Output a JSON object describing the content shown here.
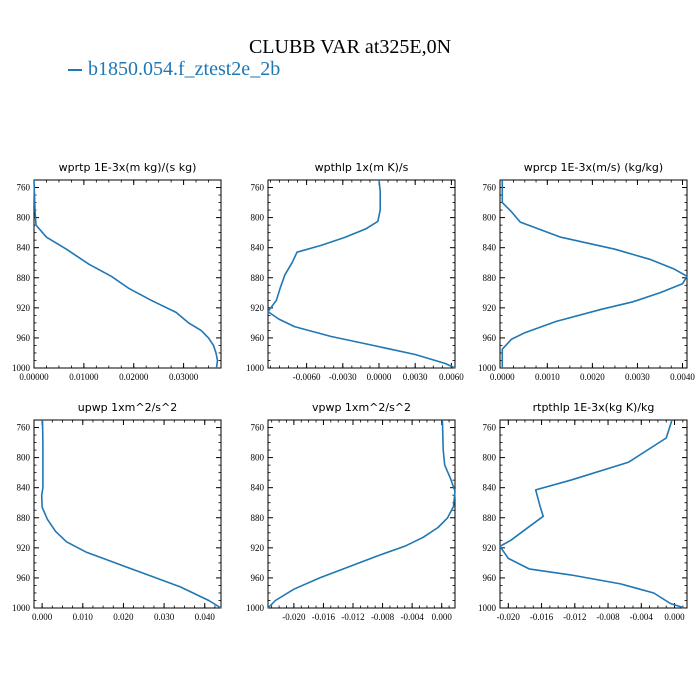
{
  "figure": {
    "title": "CLUBB VAR at325E,0N",
    "case": "b1850.054.f_ztest2e_2b",
    "line_color": "#1f77b4"
  },
  "chart_data": [
    {
      "type": "line",
      "title": "wprtp  1E-3x(m kg)/(s kg)",
      "xlim": [
        0,
        0.0375
      ],
      "ylim": [
        1000,
        750
      ],
      "xticks": [
        0,
        0.01,
        0.02,
        0.03
      ],
      "xtick_labels": [
        "0.00000",
        "0.01000",
        "0.02000",
        "0.03000"
      ],
      "yticks": [
        760,
        800,
        840,
        880,
        920,
        960,
        1000
      ],
      "series": [
        {
          "x": [
            0,
            0.0001,
            0.0002,
            0.0004,
            0.0025,
            0.0065,
            0.011,
            0.0155,
            0.019,
            0.0235,
            0.0285,
            0.031,
            0.0335,
            0.035,
            0.036,
            0.0365,
            0.0368,
            0.0366
          ],
          "y": [
            750,
            770,
            790,
            810,
            826,
            842,
            862,
            878,
            894,
            910,
            926,
            940,
            950,
            960,
            970,
            980,
            990,
            1000
          ]
        }
      ]
    },
    {
      "type": "line",
      "title": "wpthlp  1x(m K)/s",
      "xlim": [
        -0.0092,
        0.0063
      ],
      "ylim": [
        1000,
        750
      ],
      "xticks": [
        -0.006,
        -0.003,
        0,
        0.003,
        0.006
      ],
      "xtick_labels": [
        "-0.0060",
        "-0.0030",
        "0.0000",
        "0.0030",
        "0.0060"
      ],
      "yticks": [
        760,
        800,
        840,
        880,
        920,
        960,
        1000
      ],
      "series": [
        {
          "x": [
            0,
            0.0001,
            0.0001,
            -0.0001,
            -0.0011,
            -0.0028,
            -0.0048,
            -0.0068,
            -0.0072,
            -0.0078,
            -0.0082,
            -0.0085,
            -0.0092,
            -0.0083,
            -0.007,
            -0.004,
            -0.0005,
            0.003,
            0.0055,
            0.0063
          ],
          "y": [
            750,
            765,
            790,
            805,
            815,
            826,
            837,
            846,
            860,
            876,
            894,
            910,
            925,
            935,
            945,
            958,
            970,
            982,
            994,
            1000
          ]
        }
      ]
    },
    {
      "type": "line",
      "title": "wprcp  1E-3x(m/s) (kg/kg)",
      "xlim": [
        -5e-05,
        0.0041
      ],
      "ylim": [
        1000,
        750
      ],
      "xticks": [
        0,
        0.001,
        0.002,
        0.003,
        0.004
      ],
      "xtick_labels": [
        "0.0000",
        "0.0010",
        "0.0020",
        "0.0030",
        "0.0040"
      ],
      "yticks": [
        760,
        800,
        840,
        880,
        920,
        960,
        1000
      ],
      "series": [
        {
          "x": [
            0.0,
            0.0,
            0.0002,
            0.0004,
            0.0013,
            0.0025,
            0.0033,
            0.0038,
            0.0041,
            0.004,
            0.0035,
            0.0029,
            0.0022,
            0.0012,
            0.0005,
            0.0002,
            0.0,
            0.0
          ],
          "y": [
            750,
            780,
            792,
            806,
            826,
            842,
            856,
            868,
            878,
            888,
            900,
            912,
            922,
            938,
            953,
            962,
            975,
            1000
          ]
        }
      ]
    },
    {
      "type": "line",
      "title": "upwp  1xm^2/s^2",
      "xlim": [
        -0.002,
        0.044
      ],
      "ylim": [
        1000,
        750
      ],
      "xticks": [
        0,
        0.01,
        0.02,
        0.03,
        0.04
      ],
      "xtick_labels": [
        "0.000",
        "0.010",
        "0.020",
        "0.030",
        "0.040"
      ],
      "yticks": [
        760,
        800,
        840,
        880,
        920,
        960,
        1000
      ],
      "series": [
        {
          "x": [
            0.0001,
            0.0002,
            0.0002,
            0.0002,
            -0.0001,
            0.0,
            0.0013,
            0.0033,
            0.006,
            0.011,
            0.018,
            0.026,
            0.034,
            0.041,
            0.044
          ],
          "y": [
            750,
            780,
            820,
            840,
            850,
            866,
            882,
            898,
            912,
            926,
            940,
            956,
            972,
            990,
            1000
          ]
        }
      ]
    },
    {
      "type": "line",
      "title": "vpwp  1xm^2/s^2",
      "xlim": [
        -0.0235,
        0.0018
      ],
      "ylim": [
        1000,
        750
      ],
      "xticks": [
        -0.02,
        -0.016,
        -0.012,
        -0.008,
        -0.004,
        0
      ],
      "xtick_labels": [
        "-0.020",
        "-0.016",
        "-0.012",
        "-0.008",
        "-0.004",
        "0.000"
      ],
      "yticks": [
        760,
        800,
        840,
        880,
        920,
        960,
        1000
      ],
      "series": [
        {
          "x": [
            0.0001,
            0.0002,
            0.0004,
            0.0012,
            0.0018,
            0.0016,
            0.0008,
            -0.0005,
            -0.0025,
            -0.005,
            -0.0085,
            -0.0125,
            -0.0165,
            -0.02,
            -0.0225,
            -0.0235
          ],
          "y": [
            750,
            790,
            810,
            828,
            845,
            865,
            880,
            893,
            906,
            918,
            930,
            945,
            960,
            975,
            990,
            1000
          ]
        }
      ]
    },
    {
      "type": "line",
      "title": "rtpthlp  1E-3x(kg K)/kg",
      "xlim": [
        -0.021,
        0.0015
      ],
      "ylim": [
        1000,
        750
      ],
      "xticks": [
        -0.02,
        -0.016,
        -0.012,
        -0.008,
        -0.004,
        0
      ],
      "xtick_labels": [
        "-0.020",
        "-0.016",
        "-0.012",
        "-0.008",
        "-0.004",
        "0.000"
      ],
      "yticks": [
        760,
        800,
        840,
        880,
        920,
        960,
        1000
      ],
      "series": [
        {
          "x": [
            -0.0003,
            -0.001,
            -0.0055,
            -0.0125,
            -0.0167,
            -0.0162,
            -0.0158,
            -0.018,
            -0.0197,
            -0.021,
            -0.02,
            -0.0175,
            -0.0125,
            -0.0065,
            -0.0025,
            -0.0005,
            0.0012
          ],
          "y": [
            750,
            774,
            806,
            830,
            843,
            864,
            878,
            896,
            910,
            918,
            934,
            948,
            956,
            968,
            980,
            994,
            1000
          ]
        }
      ]
    }
  ]
}
